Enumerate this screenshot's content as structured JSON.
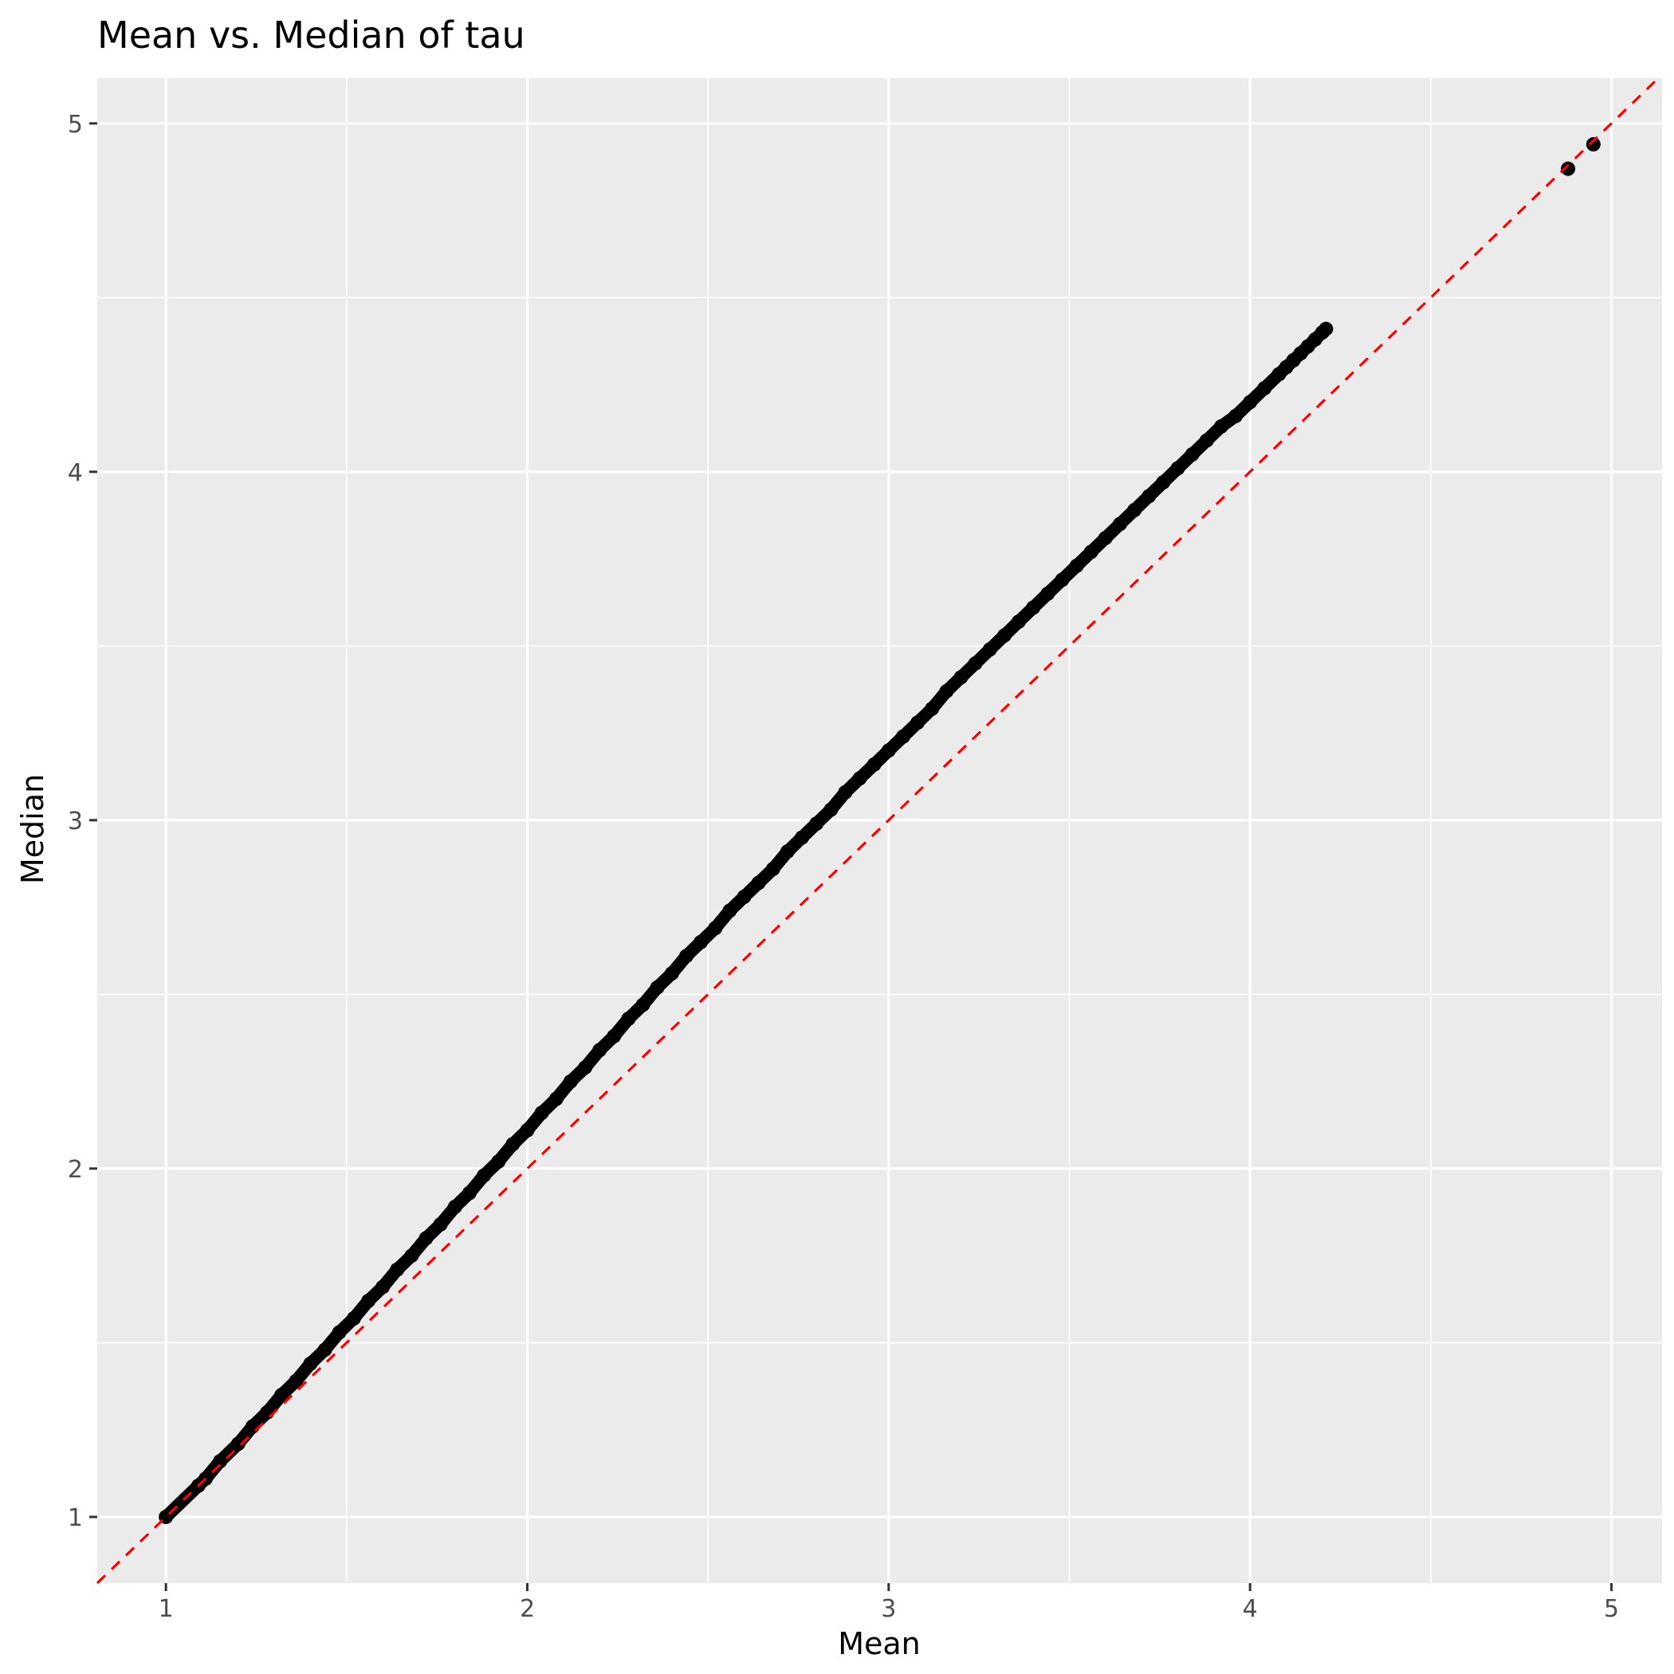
{
  "chart_data": {
    "type": "scatter",
    "title": "Mean vs. Median of tau",
    "xlabel": "Mean",
    "ylabel": "Median",
    "xlim": [
      0.81,
      5.14
    ],
    "ylim": [
      0.81,
      5.13
    ],
    "x_ticks": [
      1,
      2,
      3,
      4,
      5
    ],
    "x_tick_labels": [
      "1",
      "2",
      "3",
      "4",
      "5"
    ],
    "y_ticks": [
      1,
      2,
      3,
      4,
      5
    ],
    "y_tick_labels": [
      "1",
      "2",
      "3",
      "4",
      "5"
    ],
    "grid": true,
    "point_color": "#000000",
    "points": {
      "x": [
        1.0,
        1.09,
        1.11,
        1.15,
        1.2,
        1.24,
        1.28,
        1.32,
        1.36,
        1.4,
        1.44,
        1.48,
        1.52,
        1.56,
        1.6,
        1.64,
        1.68,
        1.72,
        1.76,
        1.8,
        1.84,
        1.88,
        1.92,
        1.96,
        2.0,
        2.04,
        2.08,
        2.12,
        2.16,
        2.2,
        2.24,
        2.28,
        2.32,
        2.36,
        2.4,
        2.44,
        2.48,
        2.52,
        2.56,
        2.6,
        2.64,
        2.68,
        2.72,
        2.76,
        2.8,
        2.84,
        2.88,
        2.92,
        2.96,
        3.0,
        3.04,
        3.08,
        3.12,
        3.16,
        3.2,
        3.24,
        3.28,
        3.32,
        3.36,
        3.4,
        3.44,
        3.48,
        3.52,
        3.56,
        3.6,
        3.64,
        3.68,
        3.72,
        3.76,
        3.8,
        3.84,
        3.88,
        3.92,
        3.96,
        4.0,
        4.04,
        4.08,
        4.1,
        4.12,
        4.14,
        4.16,
        4.18,
        4.2,
        4.21,
        4.88,
        4.95
      ],
      "y": [
        1.0,
        1.09,
        1.11,
        1.16,
        1.21,
        1.26,
        1.3,
        1.35,
        1.39,
        1.44,
        1.48,
        1.53,
        1.57,
        1.62,
        1.66,
        1.71,
        1.75,
        1.8,
        1.84,
        1.89,
        1.93,
        1.98,
        2.02,
        2.07,
        2.11,
        2.16,
        2.2,
        2.25,
        2.29,
        2.34,
        2.38,
        2.43,
        2.47,
        2.52,
        2.56,
        2.61,
        2.65,
        2.69,
        2.74,
        2.78,
        2.82,
        2.86,
        2.91,
        2.95,
        2.99,
        3.03,
        3.08,
        3.12,
        3.16,
        3.2,
        3.24,
        3.28,
        3.32,
        3.37,
        3.41,
        3.45,
        3.49,
        3.53,
        3.57,
        3.61,
        3.65,
        3.69,
        3.73,
        3.77,
        3.81,
        3.85,
        3.89,
        3.93,
        3.97,
        4.01,
        4.05,
        4.09,
        4.13,
        4.16,
        4.2,
        4.24,
        4.28,
        4.3,
        4.32,
        4.34,
        4.36,
        4.38,
        4.4,
        4.41,
        4.87,
        4.94
      ]
    },
    "reference_line": {
      "type": "identity",
      "color": "#ff0000",
      "style": "dashed"
    }
  }
}
